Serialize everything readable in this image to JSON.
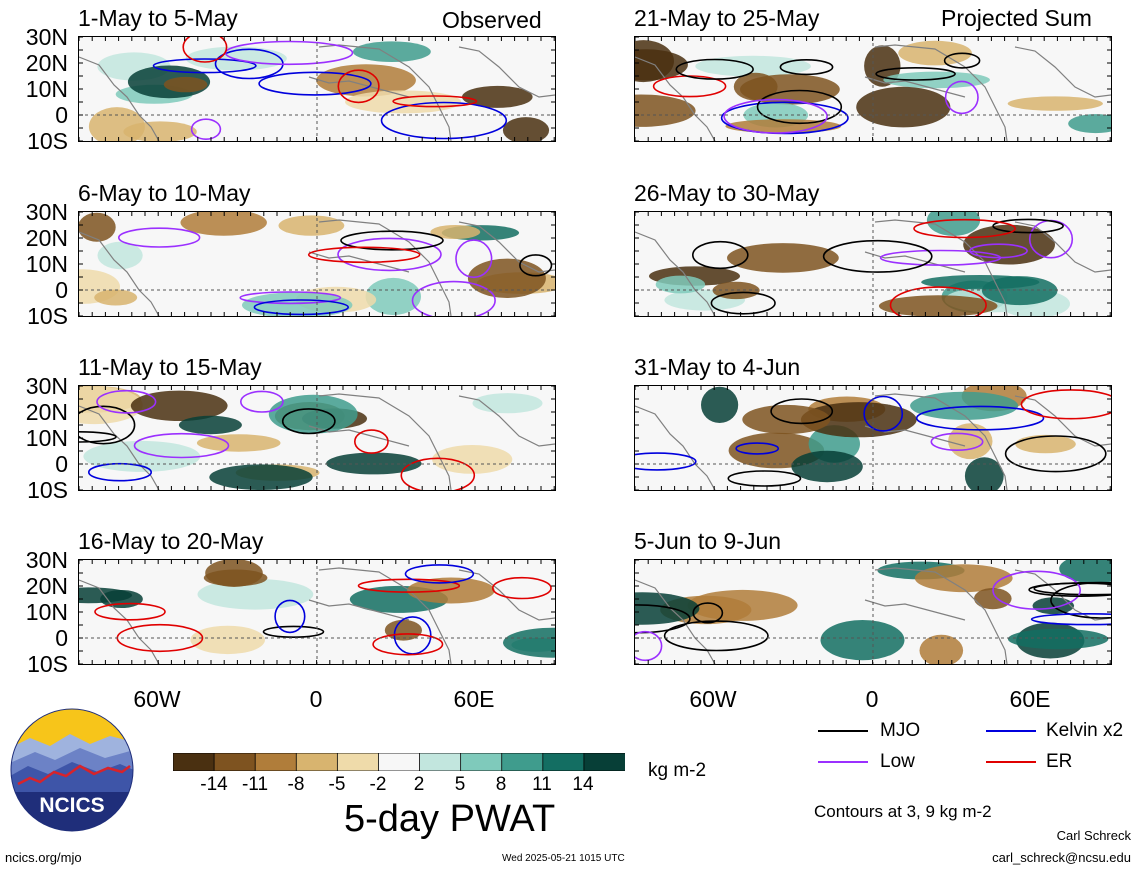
{
  "panels": [
    {
      "title": "1-May to 5-May",
      "corner": "Observed"
    },
    {
      "title": "6-May to 10-May",
      "corner": ""
    },
    {
      "title": "11-May to 15-May",
      "corner": ""
    },
    {
      "title": "16-May to 20-May",
      "corner": ""
    },
    {
      "title": "21-May to 25-May",
      "corner": "Projected Sum"
    },
    {
      "title": "26-May to 30-May",
      "corner": ""
    },
    {
      "title": "31-May to 4-Jun",
      "corner": ""
    },
    {
      "title": "5-Jun to 9-Jun",
      "corner": ""
    }
  ],
  "lat_labels": [
    "30N",
    "20N",
    "10N",
    "0",
    "10S"
  ],
  "lon_labels": [
    "60W",
    "0",
    "60E"
  ],
  "colorbar": {
    "ticks": [
      "-14",
      "-11",
      "-8",
      "-5",
      "-2",
      "2",
      "5",
      "8",
      "11",
      "14"
    ],
    "colors": [
      "#4a3011",
      "#7e5320",
      "#b07d3a",
      "#d8b46f",
      "#efdbaa",
      "#f7f7f7",
      "#c2e6de",
      "#7fcabb",
      "#3f9c8d",
      "#136e62",
      "#073f37"
    ],
    "units": "kg m-2",
    "title": "5-day PWAT"
  },
  "legend": {
    "items": [
      {
        "label": "MJO",
        "color": "#000000"
      },
      {
        "label": "Kelvin x2",
        "color": "#0000dd"
      },
      {
        "label": "Low",
        "color": "#9b30ff"
      },
      {
        "label": "ER",
        "color": "#e00000"
      }
    ],
    "contours_note": "Contours at 3, 9 kg m-2"
  },
  "footer": {
    "logo_text": "NCICS",
    "site": "ncics.org/mjo",
    "timestamp": "Wed 2025-05-21 1015 UTC",
    "author": "Carl Schreck",
    "email": "carl_schreck@ncsu.edu"
  }
}
